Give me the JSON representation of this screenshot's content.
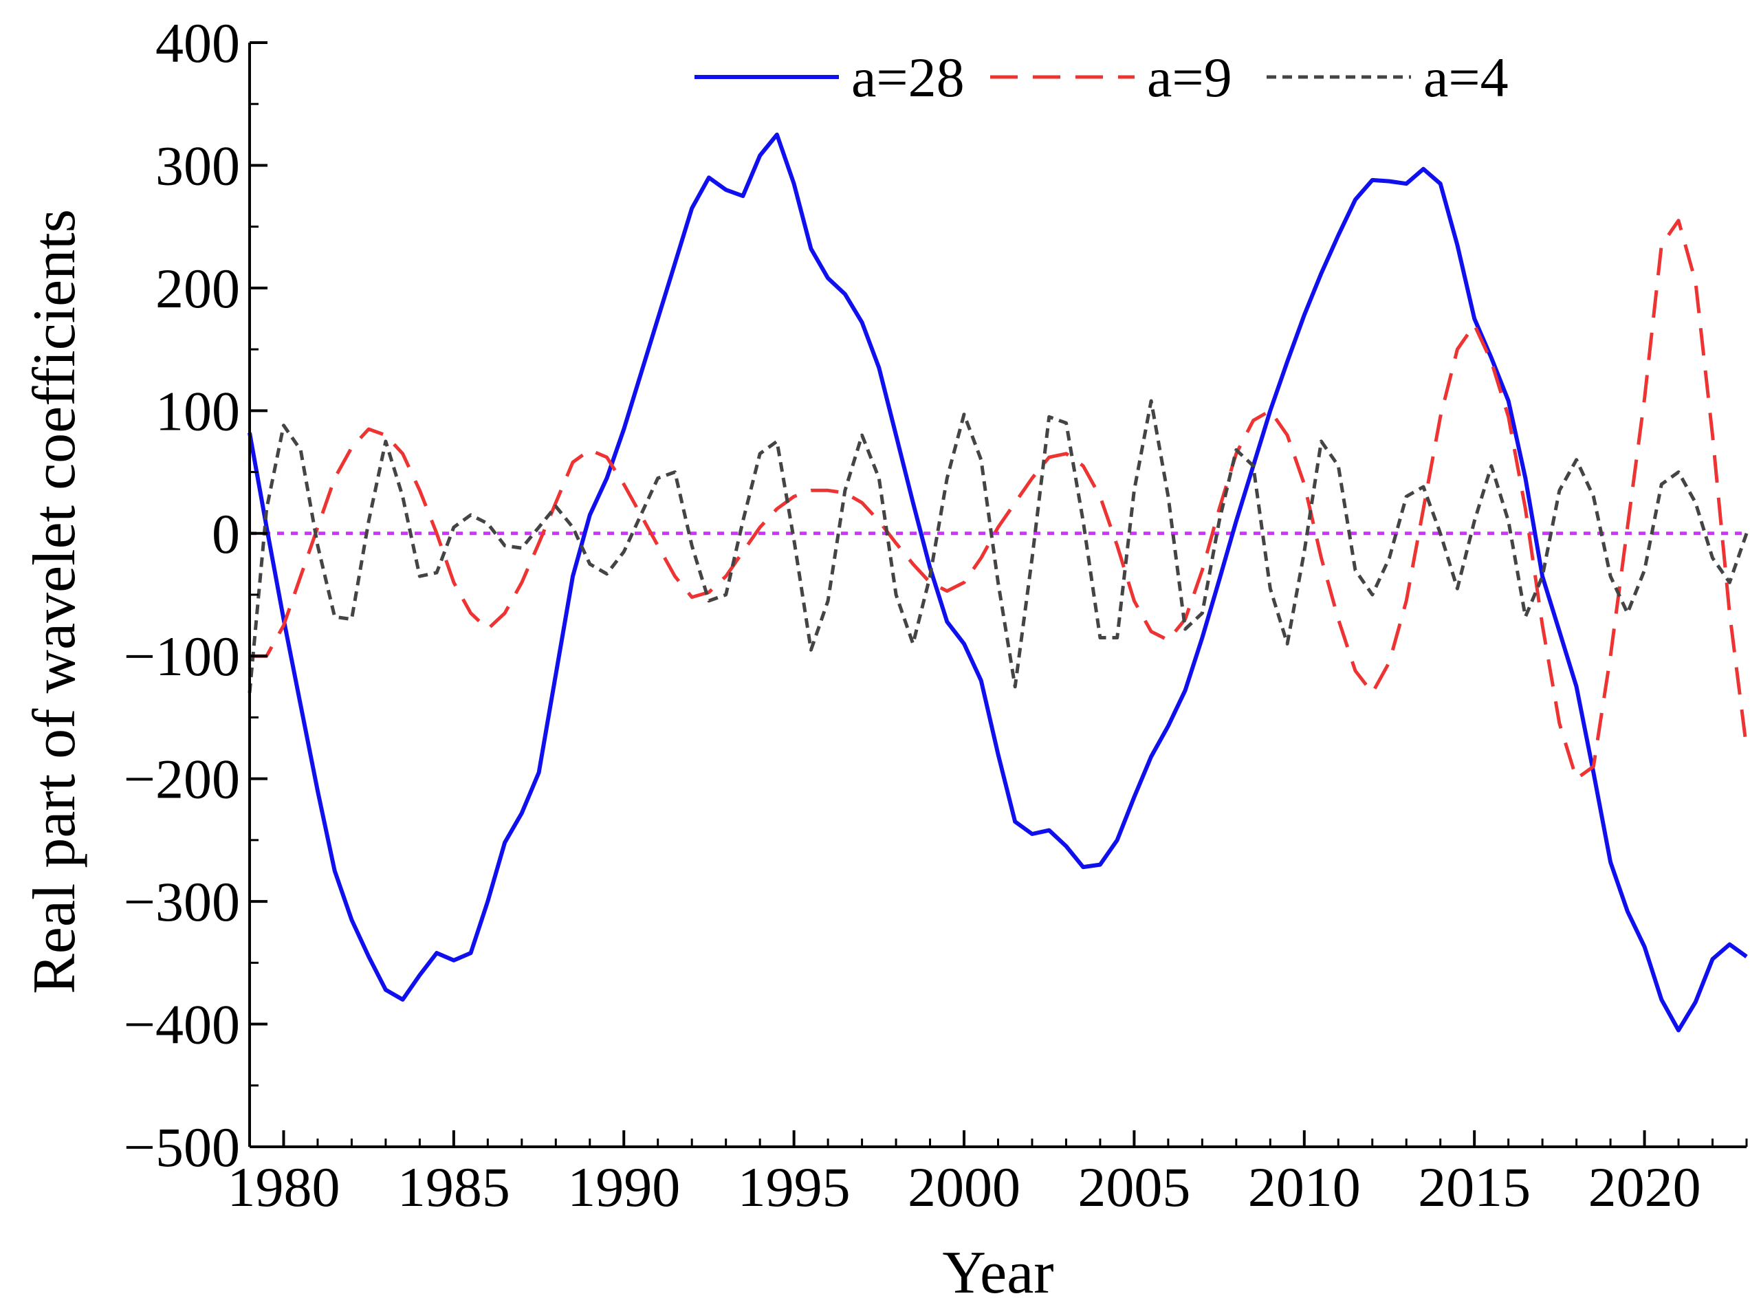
{
  "chart_data": {
    "type": "line",
    "xlabel": "Year",
    "ylabel": "Real part of wavelet coefficients",
    "xlim": [
      1979,
      2023
    ],
    "ylim": [
      -500,
      400
    ],
    "xticks": [
      1980,
      1985,
      1990,
      1995,
      2000,
      2005,
      2010,
      2015,
      2020
    ],
    "yticks": [
      -500,
      -400,
      -300,
      -200,
      -100,
      0,
      100,
      200,
      300,
      400
    ],
    "ytick_labels": [
      "−500",
      "−400",
      "−300",
      "−200",
      "−100",
      "0",
      "100",
      "200",
      "300",
      "400"
    ],
    "grid": false,
    "legend_position": "top-center",
    "reference_line": {
      "y": 0,
      "color": "#cc33ff",
      "style": "dotted"
    },
    "series": [
      {
        "name": "a=28",
        "color": "#1010ee",
        "style": "solid",
        "x": [
          1979,
          1979.5,
          1980,
          1980.5,
          1981,
          1981.5,
          1982,
          1982.5,
          1983,
          1983.5,
          1984,
          1984.5,
          1985,
          1985.5,
          1986,
          1986.5,
          1987,
          1987.5,
          1988,
          1988.5,
          1989,
          1989.5,
          1990,
          1990.5,
          1991,
          1991.5,
          1992,
          1992.5,
          1993,
          1993.5,
          1994,
          1994.5,
          1995,
          1995.5,
          1996,
          1996.5,
          1997,
          1997.5,
          1998,
          1998.5,
          1999,
          1999.5,
          2000,
          2000.5,
          2001,
          2001.5,
          2002,
          2002.5,
          2003,
          2003.5,
          2004,
          2004.5,
          2005,
          2005.5,
          2006,
          2006.5,
          2007,
          2007.5,
          2008,
          2008.5,
          2009,
          2009.5,
          2010,
          2010.5,
          2011,
          2011.5,
          2012,
          2012.5,
          2013,
          2013.5,
          2014,
          2014.5,
          2015,
          2015.5,
          2016,
          2016.5,
          2017,
          2017.5,
          2018,
          2018.5,
          2019,
          2019.5,
          2020,
          2020.5,
          2021,
          2021.5,
          2022,
          2022.5,
          2023
        ],
        "values": [
          82,
          5,
          -70,
          -140,
          -210,
          -275,
          -315,
          -345,
          -372,
          -380,
          -360,
          -342,
          -348,
          -342,
          -300,
          -252,
          -228,
          -195,
          -115,
          -35,
          15,
          45,
          85,
          130,
          175,
          220,
          265,
          290,
          280,
          275,
          308,
          325,
          285,
          232,
          208,
          195,
          172,
          135,
          80,
          25,
          -28,
          -72,
          -90,
          -120,
          -180,
          -235,
          -245,
          -242,
          -255,
          -272,
          -270,
          -250,
          -215,
          -182,
          -157,
          -128,
          -85,
          -38,
          10,
          55,
          100,
          140,
          178,
          212,
          243,
          272,
          288,
          287,
          285,
          297,
          285,
          235,
          175,
          143,
          108,
          45,
          -35,
          -80,
          -125,
          -195,
          -268,
          -308,
          -337,
          -380,
          -405,
          -382,
          -347,
          -335,
          -345
        ]
      },
      {
        "name": "a=9",
        "color": "#ee3333",
        "style": "dashed",
        "x": [
          1979,
          1979.5,
          1980,
          1980.5,
          1981,
          1981.5,
          1982,
          1982.5,
          1983,
          1983.5,
          1984,
          1984.5,
          1985,
          1985.5,
          1986,
          1986.5,
          1987,
          1987.5,
          1988,
          1988.5,
          1989,
          1989.5,
          1990,
          1990.5,
          1991,
          1991.5,
          1992,
          1992.5,
          1993,
          1993.5,
          1994,
          1994.5,
          1995,
          1995.5,
          1996,
          1996.5,
          1997,
          1997.5,
          1998,
          1998.5,
          1999,
          1999.5,
          2000,
          2000.5,
          2001,
          2001.5,
          2002,
          2002.5,
          2003,
          2003.5,
          2004,
          2004.5,
          2005,
          2005.5,
          2006,
          2006.5,
          2007,
          2007.5,
          2008,
          2008.5,
          2009,
          2009.5,
          2010,
          2010.5,
          2011,
          2011.5,
          2012,
          2012.5,
          2013,
          2013.5,
          2014,
          2014.5,
          2015,
          2015.5,
          2016,
          2016.5,
          2017,
          2017.5,
          2018,
          2018.5,
          2019,
          2019.5,
          2020,
          2020.5,
          2021,
          2021.5,
          2022,
          2022.5,
          2023
        ],
        "values": [
          -100,
          -100,
          -75,
          -35,
          5,
          45,
          70,
          85,
          80,
          65,
          35,
          0,
          -40,
          -65,
          -78,
          -65,
          -40,
          -8,
          25,
          58,
          68,
          62,
          40,
          15,
          -10,
          -35,
          -52,
          -48,
          -35,
          -15,
          5,
          20,
          30,
          35,
          35,
          33,
          25,
          10,
          -8,
          -25,
          -40,
          -47,
          -40,
          -20,
          5,
          25,
          45,
          62,
          65,
          55,
          30,
          -10,
          -55,
          -80,
          -87,
          -70,
          -30,
          20,
          65,
          92,
          100,
          80,
          40,
          -20,
          -70,
          -112,
          -130,
          -105,
          -55,
          20,
          95,
          150,
          170,
          140,
          95,
          20,
          -75,
          -155,
          -200,
          -190,
          -100,
          5,
          110,
          235,
          255,
          205,
          80,
          -65,
          -175
        ]
      },
      {
        "name": "a=4",
        "color": "#444444",
        "style": "dotted",
        "x": [
          1979,
          1979.5,
          1980,
          1980.5,
          1981,
          1981.5,
          1982,
          1982.5,
          1983,
          1983.5,
          1984,
          1984.5,
          1985,
          1985.5,
          1986,
          1986.5,
          1987,
          1987.5,
          1988,
          1988.5,
          1989,
          1989.5,
          1990,
          1990.5,
          1991,
          1991.5,
          1992,
          1992.5,
          1993,
          1993.5,
          1994,
          1994.5,
          1995,
          1995.5,
          1996,
          1996.5,
          1997,
          1997.5,
          1998,
          1998.5,
          1999,
          1999.5,
          2000,
          2000.5,
          2001,
          2001.5,
          2002,
          2002.5,
          2003,
          2003.5,
          2004,
          2004.5,
          2005,
          2005.5,
          2006,
          2006.5,
          2007,
          2007.5,
          2008,
          2008.5,
          2009,
          2009.5,
          2010,
          2010.5,
          2011,
          2011.5,
          2012,
          2012.5,
          2013,
          2013.5,
          2014,
          2014.5,
          2015,
          2015.5,
          2016,
          2016.5,
          2017,
          2017.5,
          2018,
          2018.5,
          2019,
          2019.5,
          2020,
          2020.5,
          2021,
          2021.5,
          2022,
          2022.5,
          2023
        ],
        "values": [
          -130,
          20,
          88,
          68,
          -10,
          -68,
          -70,
          10,
          75,
          30,
          -35,
          -32,
          5,
          15,
          8,
          -10,
          -12,
          5,
          22,
          5,
          -25,
          -33,
          -15,
          15,
          45,
          50,
          -10,
          -55,
          -50,
          10,
          65,
          75,
          -5,
          -95,
          -55,
          35,
          80,
          45,
          -50,
          -90,
          -35,
          45,
          97,
          60,
          -40,
          -125,
          -20,
          95,
          90,
          10,
          -85,
          -85,
          35,
          108,
          30,
          -78,
          -65,
          10,
          68,
          55,
          -45,
          -90,
          -15,
          75,
          55,
          -30,
          -50,
          -20,
          30,
          38,
          0,
          -45,
          10,
          55,
          10,
          -68,
          -35,
          35,
          60,
          30,
          -35,
          -65,
          -30,
          40,
          50,
          25,
          -20,
          -40,
          0
        ]
      }
    ]
  }
}
